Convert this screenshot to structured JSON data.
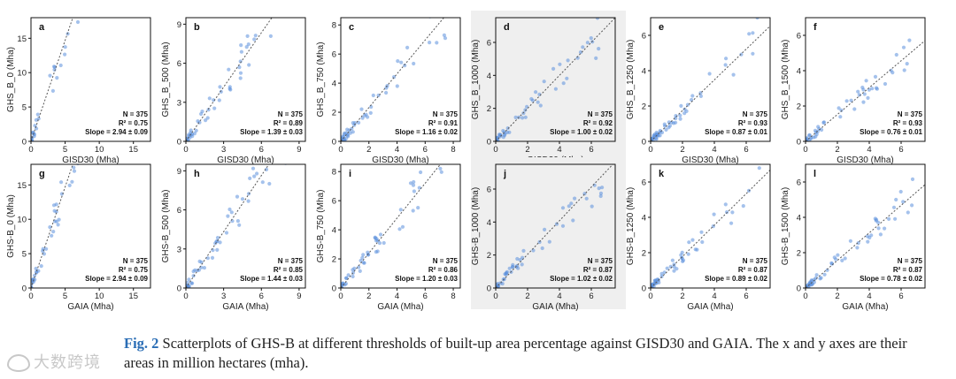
{
  "figure": {
    "caption_label": "Fig. 2",
    "caption_text": "Scatterplots of GHS-B at different thresholds of built-up area percentage against GISD30 and GAIA. The x and y axes are their areas in million hectares (mha).",
    "watermark": "大数跨境",
    "highlight_color": "#efefef",
    "point_color": "#5b8fdc"
  },
  "chart_data": [
    {
      "type": "scatter",
      "panel": "a",
      "xlabel": "GISD30 (Mha)",
      "ylabel": "GHS_B_0 (Mha)",
      "xlim": [
        0,
        17.5
      ],
      "ylim": [
        0,
        18
      ],
      "xticks": [
        0,
        5,
        10,
        15
      ],
      "yticks": [
        0,
        5,
        10,
        15
      ],
      "n": "N = 375",
      "r2": "R² = 0.75",
      "slope": "Slope = 2.94 ± 0.09",
      "slope_value": 2.94,
      "highlight": false
    },
    {
      "type": "scatter",
      "panel": "b",
      "xlabel": "GISD30 (Mha)",
      "ylabel": "GHS_B_500 (Mha)",
      "xlim": [
        0,
        9.5
      ],
      "ylim": [
        0,
        9.5
      ],
      "xticks": [
        0,
        3,
        6,
        9
      ],
      "yticks": [
        0,
        3,
        6,
        9
      ],
      "n": "N = 375",
      "r2": "R² = 0.89",
      "slope": "Slope = 1.39 ± 0.03",
      "slope_value": 1.39,
      "highlight": false
    },
    {
      "type": "scatter",
      "panel": "c",
      "xlabel": "GISD30 (Mha)",
      "ylabel": "GHS_B_750 (Mha)",
      "xlim": [
        0,
        8.5
      ],
      "ylim": [
        0,
        8.5
      ],
      "xticks": [
        0,
        2,
        4,
        6,
        8
      ],
      "yticks": [
        0,
        2,
        4,
        6,
        8
      ],
      "n": "N = 375",
      "r2": "R² = 0.91",
      "slope": "Slope = 1.16 ± 0.02",
      "slope_value": 1.16,
      "highlight": false
    },
    {
      "type": "scatter",
      "panel": "d",
      "xlabel": "GISD30 (Mha)",
      "ylabel": "GHS_B_1000 (Mha)",
      "xlim": [
        0,
        7.5
      ],
      "ylim": [
        0,
        7.5
      ],
      "xticks": [
        0,
        2,
        4,
        6
      ],
      "yticks": [
        0,
        2,
        4,
        6
      ],
      "n": "N = 375",
      "r2": "R² = 0.92",
      "slope": "Slope = 1.00 ± 0.02",
      "slope_value": 1.0,
      "highlight": true
    },
    {
      "type": "scatter",
      "panel": "e",
      "xlabel": "GISD30 (Mha)",
      "ylabel": "GHS_B_1250 (Mha)",
      "xlim": [
        0,
        7.5
      ],
      "ylim": [
        0,
        7
      ],
      "xticks": [
        0,
        2,
        4,
        6
      ],
      "yticks": [
        0,
        2,
        4,
        6
      ],
      "n": "N = 375",
      "r2": "R² = 0.93",
      "slope": "Slope = 0.87 ± 0.01",
      "slope_value": 0.87,
      "highlight": false
    },
    {
      "type": "scatter",
      "panel": "f",
      "xlabel": "GISD30 (Mha)",
      "ylabel": "GHS_B_1500 (Mha)",
      "xlim": [
        0,
        7.5
      ],
      "ylim": [
        0,
        7
      ],
      "xticks": [
        0,
        2,
        4,
        6
      ],
      "yticks": [
        0,
        2,
        4,
        6
      ],
      "n": "N = 375",
      "r2": "R² = 0.93",
      "slope": "Slope = 0.76 ± 0.01",
      "slope_value": 0.76,
      "highlight": false
    },
    {
      "type": "scatter",
      "panel": "g",
      "xlabel": "GAIA (Mha)",
      "ylabel": "GHS-B_0 (Mha)",
      "xlim": [
        0,
        17.5
      ],
      "ylim": [
        0,
        18
      ],
      "xticks": [
        0,
        5,
        10,
        15
      ],
      "yticks": [
        0,
        5,
        10,
        15
      ],
      "n": "N = 375",
      "r2": "R² = 0.75",
      "slope": "Slope = 2.94 ± 0.09",
      "slope_value": 2.94,
      "highlight": false
    },
    {
      "type": "scatter",
      "panel": "h",
      "xlabel": "GAIA (Mha)",
      "ylabel": "GHS-B_500 (Mha)",
      "xlim": [
        0,
        9.5
      ],
      "ylim": [
        0,
        9.5
      ],
      "xticks": [
        0,
        3,
        6,
        9
      ],
      "yticks": [
        0,
        3,
        6,
        9
      ],
      "n": "N = 375",
      "r2": "R² = 0.85",
      "slope": "Slope = 1.44 ± 0.03",
      "slope_value": 1.44,
      "highlight": false
    },
    {
      "type": "scatter",
      "panel": "i",
      "xlabel": "GAIA (Mha)",
      "ylabel": "GHS-B_750 (Mha)",
      "xlim": [
        0,
        8.5
      ],
      "ylim": [
        0,
        8.5
      ],
      "xticks": [
        0,
        2,
        4,
        6,
        8
      ],
      "yticks": [
        0,
        2,
        4,
        6,
        8
      ],
      "n": "N = 375",
      "r2": "R² = 0.86",
      "slope": "Slope = 1.20 ± 0.03",
      "slope_value": 1.2,
      "highlight": false
    },
    {
      "type": "scatter",
      "panel": "j",
      "xlabel": "GAIA (Mha)",
      "ylabel": "GHS-B_1000 (Mha)",
      "xlim": [
        0,
        7.5
      ],
      "ylim": [
        0,
        7.5
      ],
      "xticks": [
        0,
        2,
        4,
        6
      ],
      "yticks": [
        0,
        2,
        4,
        6
      ],
      "n": "N = 375",
      "r2": "R² = 0.87",
      "slope": "Slope = 1.02 ± 0.02",
      "slope_value": 1.02,
      "highlight": true
    },
    {
      "type": "scatter",
      "panel": "k",
      "xlabel": "GAIA (Mha)",
      "ylabel": "GHS-B_1250 (Mha)",
      "xlim": [
        0,
        7.5
      ],
      "ylim": [
        0,
        7
      ],
      "xticks": [
        0,
        2,
        4,
        6
      ],
      "yticks": [
        0,
        2,
        4,
        6
      ],
      "n": "N = 375",
      "r2": "R² = 0.87",
      "slope": "Slope = 0.89 ± 0.02",
      "slope_value": 0.89,
      "highlight": false
    },
    {
      "type": "scatter",
      "panel": "l",
      "xlabel": "GAIA (Mha)",
      "ylabel": "GHS-B_1500 (Mha)",
      "xlim": [
        0,
        7.5
      ],
      "ylim": [
        0,
        7
      ],
      "xticks": [
        0,
        2,
        4,
        6
      ],
      "yticks": [
        0,
        2,
        4,
        6
      ],
      "n": "N = 375",
      "r2": "R² = 0.87",
      "slope": "Slope = 0.78 ± 0.02",
      "slope_value": 0.78,
      "highlight": false
    }
  ]
}
